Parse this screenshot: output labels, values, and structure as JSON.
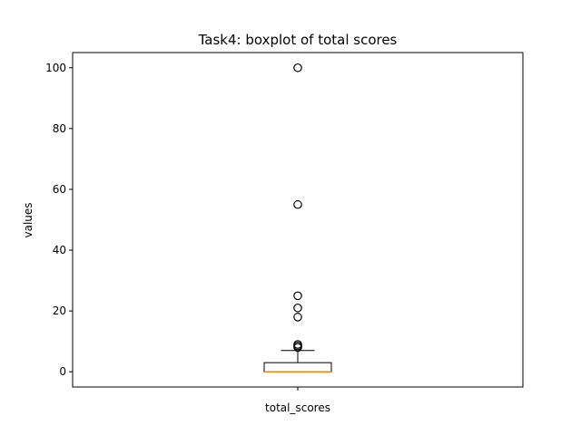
{
  "chart_data": {
    "type": "boxplot",
    "title": "Task4: boxplot of total scores",
    "xlabel": "",
    "ylabel": "values",
    "categories": [
      "total_scores"
    ],
    "ylim": [
      -5,
      105
    ],
    "yticks": [
      0,
      20,
      40,
      60,
      80,
      100
    ],
    "grid": false,
    "legend": "none",
    "boxes": [
      {
        "category": "total_scores",
        "whisker_low": 0,
        "q1": 0,
        "median": 0,
        "q3": 3,
        "whisker_high": 7,
        "outliers": [
          8,
          8.5,
          9,
          18,
          21,
          25,
          55,
          100
        ]
      }
    ],
    "colors": {
      "box": "#000000",
      "median": "#ff7f0e",
      "whisker": "#000000",
      "flier": "#000000"
    }
  }
}
